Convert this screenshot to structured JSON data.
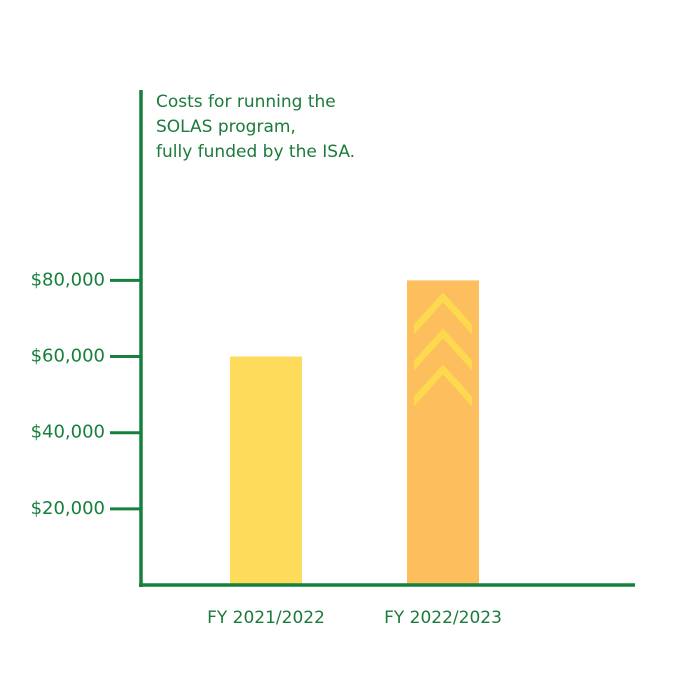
{
  "chart_data": {
    "type": "bar",
    "annotation": [
      "Costs for running the",
      "SOLAS program,",
      "fully funded by the ISA."
    ],
    "categories": [
      "FY 2021/2022",
      "FY 2022/2023"
    ],
    "values": [
      60000,
      80000
    ],
    "colors": [
      "#fddc5c",
      "#fdbe5e"
    ],
    "ylim": [
      0,
      130000
    ],
    "yticks": [
      {
        "value": 20000,
        "label": "$20,000"
      },
      {
        "value": 40000,
        "label": "$40,000"
      },
      {
        "value": 60000,
        "label": "$60,000"
      },
      {
        "value": 80000,
        "label": "$80,000"
      }
    ],
    "axis_color": "#17803d"
  }
}
